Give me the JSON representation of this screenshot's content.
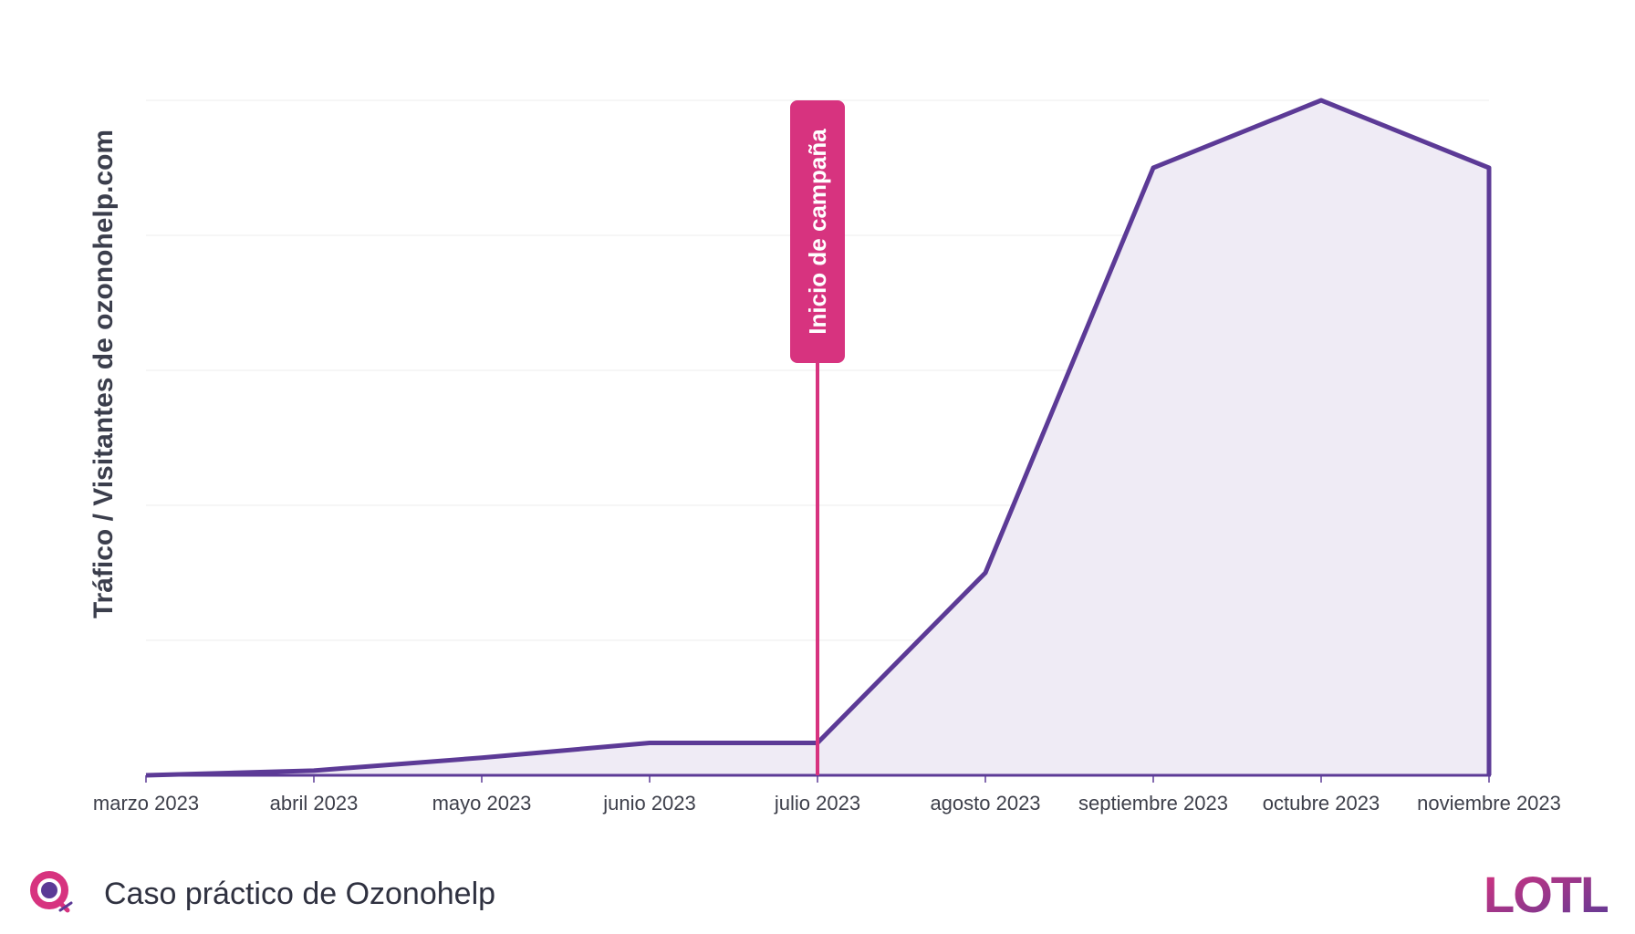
{
  "chart_data": {
    "type": "area",
    "title": "",
    "xlabel": "",
    "ylabel": "Tráfico / Visitantes de ozonohelp.com",
    "categories": [
      "marzo 2023",
      "abril 2023",
      "mayo 2023",
      "junio 2023",
      "julio 2023",
      "agosto 2023",
      "septiembre 2023",
      "octubre 2023",
      "noviembre 2023"
    ],
    "values": [
      0,
      0.7,
      2.6,
      4.8,
      4.8,
      30,
      90,
      100,
      90
    ],
    "ylim": [
      0,
      100
    ],
    "y_tick_labels_shown": false,
    "grid": true,
    "annotation": {
      "label": "Inicio de campaña",
      "at": "julio 2023"
    },
    "colors": {
      "line": "#5c3a96",
      "fill": "#efebf5",
      "annotation": "#d7337f",
      "grid": "#ececec",
      "axis": "#5c3a96"
    }
  },
  "footer": {
    "text": "Caso práctico de Ozonohelp",
    "logo_icon": "ozonohelp-logo-icon",
    "logo_colors": [
      "#d7337f",
      "#5c3a96"
    ]
  },
  "brand": {
    "logo_text": "LOTL",
    "colors": [
      "#d7337f",
      "#5c3a96"
    ]
  }
}
